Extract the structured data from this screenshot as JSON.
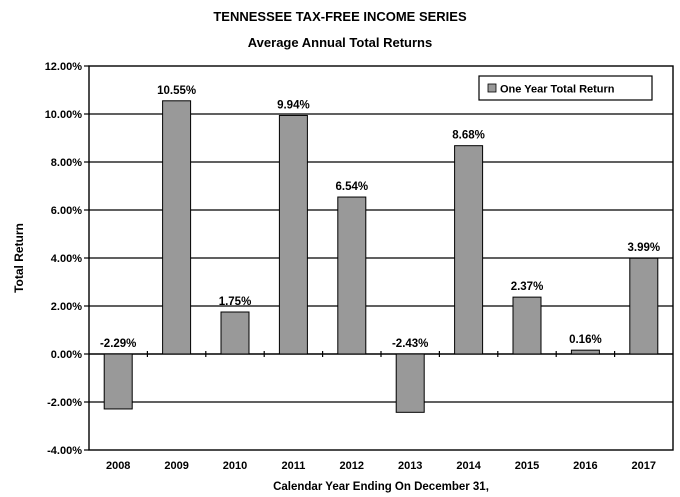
{
  "chart_data": {
    "type": "bar",
    "title": "TENNESSEE TAX-FREE INCOME SERIES",
    "subtitle": "Average Annual Total Returns",
    "xlabel": "Calendar Year Ending On December 31,",
    "ylabel": "Total Return",
    "categories": [
      "2008",
      "2009",
      "2010",
      "2011",
      "2012",
      "2013",
      "2014",
      "2015",
      "2016",
      "2017"
    ],
    "series": [
      {
        "name": "One Year Total Return",
        "values": [
          -2.29,
          10.55,
          1.75,
          9.94,
          6.54,
          -2.43,
          8.68,
          2.37,
          0.16,
          3.99
        ],
        "labels": [
          "-2.29%",
          "10.55%",
          "1.75%",
          "9.94%",
          "6.54%",
          "-2.43%",
          "8.68%",
          "2.37%",
          "0.16%",
          "3.99%"
        ],
        "color": "#999999"
      }
    ],
    "ylim": [
      -4,
      12
    ],
    "yticks": [
      12,
      10,
      8,
      6,
      4,
      2,
      0,
      -2,
      -4
    ],
    "ytick_labels": [
      "12.00%",
      "10.00%",
      "8.00%",
      "6.00%",
      "4.00%",
      "2.00%",
      "0.00%",
      "-2.00%",
      "-4.00%"
    ],
    "grid": true,
    "legend_position": "top-right"
  }
}
